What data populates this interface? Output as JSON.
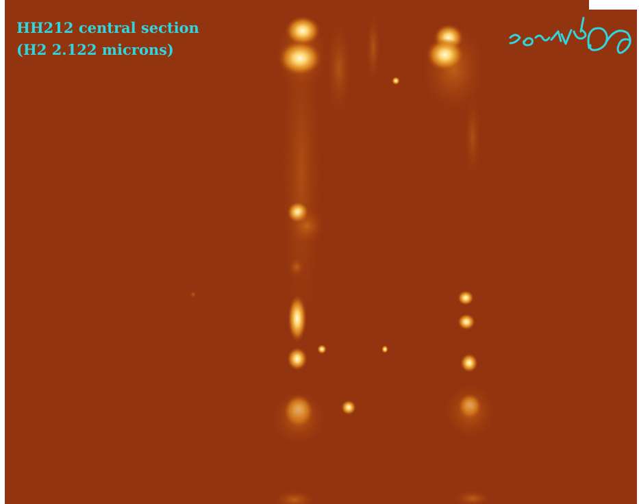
{
  "caption": {
    "line1": "HH212 central section",
    "line2": "(H2 2.122 microns)"
  }
}
